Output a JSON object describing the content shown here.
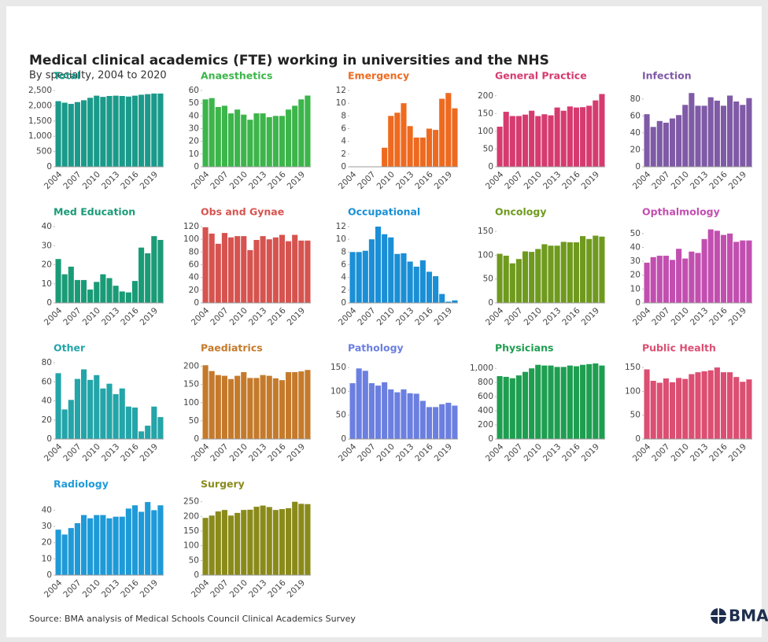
{
  "title": "Medical clinical academics (FTE) working in universities and the NHS",
  "subtitle": "By specialty, 2004 to 2020",
  "source": "Source: BMA analysis of Medical Schools Council Clinical Academics Survey",
  "logo": "BMA",
  "chart_data": [
    {
      "type": "bar",
      "title": "Total",
      "color": "#1a9a8a",
      "categories": [
        2004,
        null,
        null,
        2007,
        null,
        null,
        2010,
        null,
        null,
        2013,
        null,
        null,
        2016,
        null,
        null,
        2019,
        null
      ],
      "values": [
        2150,
        2100,
        2060,
        2120,
        2180,
        2260,
        2330,
        2290,
        2320,
        2330,
        2320,
        2300,
        2330,
        2360,
        2380,
        2400,
        2400
      ],
      "ylim": [
        0,
        2500
      ],
      "yticks": [
        0,
        500,
        {
          "value": 1000,
          "label": "1,000"
        },
        {
          "value": 1500,
          "label": "1,500"
        },
        {
          "value": 2000,
          "label": "2,000"
        },
        {
          "value": 2500,
          "label": "2,500"
        }
      ]
    },
    {
      "type": "bar",
      "title": "Anaesthetics",
      "color": "#3cb54a",
      "categories": [
        2004,
        null,
        null,
        2007,
        null,
        null,
        2010,
        null,
        null,
        2013,
        null,
        null,
        2016,
        null,
        null,
        2019,
        null
      ],
      "values": [
        53,
        54,
        47,
        48,
        42,
        45,
        41,
        37,
        42,
        42,
        39,
        40,
        40,
        45,
        48,
        53,
        56
      ],
      "ylim": [
        0,
        60
      ],
      "yticks": [
        0,
        10,
        20,
        30,
        40,
        50,
        60
      ]
    },
    {
      "type": "bar",
      "title": "Emergency",
      "color": "#ee6a1f",
      "categories": [
        2004,
        null,
        null,
        2007,
        null,
        null,
        2010,
        null,
        null,
        2013,
        null,
        null,
        2016,
        null,
        null,
        2019,
        null
      ],
      "values": [
        null,
        null,
        null,
        null,
        null,
        3,
        8,
        8.5,
        10,
        6.4,
        4.6,
        4.6,
        6,
        5.8,
        10.7,
        11.6,
        9.2
      ],
      "ylim": [
        0,
        12
      ],
      "yticks": [
        0,
        2,
        4,
        6,
        8,
        10,
        12
      ]
    },
    {
      "type": "bar",
      "title": "General Practice",
      "color": "#d63b6f",
      "categories": [
        2004,
        null,
        null,
        2007,
        null,
        null,
        2010,
        null,
        null,
        2013,
        null,
        null,
        2016,
        null,
        null,
        2019,
        null
      ],
      "values": [
        113,
        155,
        143,
        143,
        147,
        158,
        143,
        148,
        145,
        167,
        158,
        170,
        167,
        168,
        172,
        187,
        205
      ],
      "ylim": [
        0,
        215
      ],
      "yticks": [
        0,
        50,
        100,
        150,
        200
      ]
    },
    {
      "type": "bar",
      "title": "Infection",
      "color": "#7f5aa6",
      "categories": [
        2004,
        null,
        null,
        2007,
        null,
        null,
        2010,
        null,
        null,
        2013,
        null,
        null,
        2016,
        null,
        null,
        2019,
        null
      ],
      "values": [
        62,
        47,
        54,
        52,
        57,
        61,
        73,
        87,
        72,
        72,
        82,
        78,
        72,
        84,
        77,
        73,
        81
      ],
      "ylim": [
        0,
        90
      ],
      "yticks": [
        0,
        20,
        40,
        60,
        80
      ]
    },
    {
      "type": "bar",
      "title": "Med Education",
      "color": "#1a9b77",
      "categories": [
        2004,
        null,
        null,
        2007,
        null,
        null,
        2010,
        null,
        null,
        2013,
        null,
        null,
        2016,
        null,
        null,
        2019,
        null
      ],
      "values": [
        23,
        15,
        19,
        12,
        12,
        7,
        11,
        15,
        13,
        9,
        6,
        5.5,
        11.5,
        29,
        26,
        35,
        33
      ],
      "ylim": [
        0,
        40
      ],
      "yticks": [
        0,
        10,
        20,
        30,
        40
      ]
    },
    {
      "type": "bar",
      "title": "Obs and Gynae",
      "color": "#d6534f",
      "categories": [
        2004,
        null,
        null,
        2007,
        null,
        null,
        2010,
        null,
        null,
        2013,
        null,
        null,
        2016,
        null,
        null,
        2019,
        null
      ],
      "values": [
        119,
        109,
        93,
        110,
        103,
        105,
        105,
        83,
        99,
        105,
        100,
        103,
        107,
        97,
        107,
        98,
        98
      ],
      "ylim": [
        0,
        120
      ],
      "yticks": [
        0,
        20,
        40,
        60,
        80,
        100,
        120
      ]
    },
    {
      "type": "bar",
      "title": "Occupational",
      "color": "#1a8fd6",
      "categories": [
        2004,
        null,
        null,
        2007,
        null,
        null,
        2010,
        null,
        null,
        2013,
        null,
        null,
        2016,
        null,
        null,
        2019,
        null
      ],
      "values": [
        8,
        8,
        8.2,
        10,
        12,
        10.8,
        10.3,
        7.7,
        7.8,
        6.5,
        5.7,
        6.7,
        4.9,
        4.2,
        1.4,
        0.2,
        0.4
      ],
      "ylim": [
        0,
        12
      ],
      "yticks": [
        0,
        2,
        4,
        6,
        8,
        10,
        12
      ]
    },
    {
      "type": "bar",
      "title": "Oncology",
      "color": "#6f9a1e",
      "categories": [
        2004,
        null,
        null,
        2007,
        null,
        null,
        2010,
        null,
        null,
        2013,
        null,
        null,
        2016,
        null,
        null,
        2019,
        null
      ],
      "values": [
        103,
        99,
        83,
        92,
        108,
        107,
        113,
        123,
        120,
        120,
        128,
        127,
        127,
        140,
        134,
        141,
        139
      ],
      "ylim": [
        0,
        160
      ],
      "yticks": [
        0,
        50,
        100,
        150
      ]
    },
    {
      "type": "bar",
      "title": "Opthalmology",
      "color": "#c24fb0",
      "categories": [
        2004,
        null,
        null,
        2007,
        null,
        null,
        2010,
        null,
        null,
        2013,
        null,
        null,
        2016,
        null,
        null,
        2019,
        null
      ],
      "values": [
        29,
        33,
        34,
        34,
        31,
        39,
        32,
        37,
        36,
        46,
        53,
        52,
        49,
        50,
        44,
        45,
        45
      ],
      "ylim": [
        0,
        55
      ],
      "yticks": [
        0,
        10,
        20,
        30,
        40,
        50
      ]
    },
    {
      "type": "bar",
      "title": "Other",
      "color": "#23a5a9",
      "categories": [
        2004,
        null,
        null,
        2007,
        null,
        null,
        2010,
        null,
        null,
        2013,
        null,
        null,
        2016,
        null,
        null,
        2019,
        null
      ],
      "values": [
        69,
        31,
        41,
        63,
        73,
        62,
        67,
        53,
        58,
        47,
        53,
        34,
        33,
        8,
        14,
        34,
        23
      ],
      "ylim": [
        0,
        80
      ],
      "yticks": [
        0,
        20,
        40,
        60,
        80
      ]
    },
    {
      "type": "bar",
      "title": "Paediatrics",
      "color": "#c57a2b",
      "categories": [
        2004,
        null,
        null,
        2007,
        null,
        null,
        2010,
        null,
        null,
        2013,
        null,
        null,
        2016,
        null,
        null,
        2019,
        null
      ],
      "values": [
        203,
        187,
        176,
        174,
        165,
        174,
        184,
        168,
        168,
        176,
        174,
        167,
        162,
        184,
        184,
        186,
        190
      ],
      "ylim": [
        0,
        210
      ],
      "yticks": [
        0,
        50,
        100,
        150,
        200
      ]
    },
    {
      "type": "bar",
      "title": "Pathology",
      "color": "#6b7fe0",
      "categories": [
        2004,
        null,
        null,
        2007,
        null,
        null,
        2010,
        null,
        null,
        2013,
        null,
        null,
        2016,
        null,
        null,
        2019,
        null
      ],
      "values": [
        117,
        148,
        143,
        117,
        112,
        119,
        104,
        98,
        104,
        96,
        95,
        80,
        67,
        67,
        73,
        76,
        70
      ],
      "ylim": [
        0,
        160
      ],
      "yticks": [
        0,
        50,
        100,
        150
      ]
    },
    {
      "type": "bar",
      "title": "Physicians",
      "color": "#1e9e50",
      "categories": [
        2004,
        null,
        null,
        2007,
        null,
        null,
        2010,
        null,
        null,
        2013,
        null,
        null,
        2016,
        null,
        null,
        2019,
        null
      ],
      "values": [
        890,
        880,
        860,
        900,
        950,
        1000,
        1050,
        1040,
        1040,
        1020,
        1020,
        1040,
        1030,
        1050,
        1060,
        1070,
        1040
      ],
      "ylim": [
        0,
        1080
      ],
      "yticks": [
        0,
        200,
        400,
        600,
        800,
        {
          "value": 1000,
          "label": "1,000"
        }
      ]
    },
    {
      "type": "bar",
      "title": "Public Health",
      "color": "#dc4e72",
      "categories": [
        2004,
        null,
        null,
        2007,
        null,
        null,
        2010,
        null,
        null,
        2013,
        null,
        null,
        2016,
        null,
        null,
        2019,
        null
      ],
      "values": [
        146,
        122,
        118,
        127,
        119,
        128,
        126,
        136,
        140,
        142,
        144,
        150,
        140,
        140,
        130,
        120,
        125
      ],
      "ylim": [
        0,
        160
      ],
      "yticks": [
        0,
        50,
        100,
        150
      ]
    },
    {
      "type": "bar",
      "title": "Radiology",
      "color": "#1e9ad8",
      "categories": [
        2004,
        null,
        null,
        2007,
        null,
        null,
        2010,
        null,
        null,
        2013,
        null,
        null,
        2016,
        null,
        null,
        2019,
        null
      ],
      "values": [
        28,
        25,
        29,
        32,
        37,
        35,
        37,
        37,
        35,
        36,
        36,
        41,
        43,
        39,
        45,
        40,
        43
      ],
      "ylim": [
        0,
        47
      ],
      "yticks": [
        0,
        10,
        20,
        30,
        40
      ]
    },
    {
      "type": "bar",
      "title": "Surgery",
      "color": "#8a8a1a",
      "categories": [
        2004,
        null,
        null,
        2007,
        null,
        null,
        2010,
        null,
        null,
        2013,
        null,
        null,
        2016,
        null,
        null,
        2019,
        null
      ],
      "values": [
        195,
        203,
        217,
        222,
        203,
        212,
        222,
        223,
        233,
        237,
        232,
        222,
        225,
        228,
        250,
        243,
        242
      ],
      "ylim": [
        0,
        260
      ],
      "yticks": [
        0,
        50,
        100,
        150,
        200,
        250
      ]
    }
  ]
}
